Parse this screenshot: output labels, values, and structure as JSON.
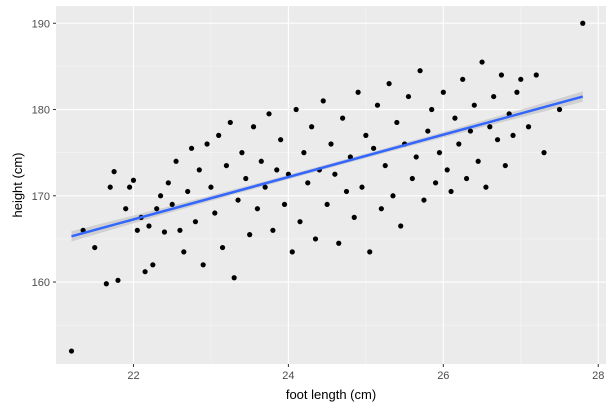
{
  "chart_data": {
    "type": "scatter",
    "title": "",
    "xlabel": "foot length (cm)",
    "ylabel": "height (cm)",
    "xlim": [
      21.0,
      28.1
    ],
    "ylim": [
      150.5,
      192.0
    ],
    "x_ticks": [
      22,
      24,
      26,
      28
    ],
    "x_tick_labels": [
      "22",
      "24",
      "26",
      "28"
    ],
    "y_ticks": [
      160,
      170,
      180,
      190
    ],
    "y_tick_labels": [
      "160",
      "170",
      "180",
      "190"
    ],
    "grid": true,
    "legend": "none",
    "colors": {
      "panel_background": "#ebebeb",
      "grid_major": "#ffffff",
      "grid_minor": "#f5f5f5",
      "point": "#000000",
      "fit_line": "#3366ff",
      "confidence_band": "#c9c9c9"
    },
    "series": [
      {
        "label_points_note": "",
        "x": [
          21.2,
          21.35,
          21.5,
          21.65,
          21.7,
          21.75,
          21.8,
          21.9,
          21.95,
          22.0,
          22.05,
          22.1,
          22.15,
          22.2,
          22.25,
          22.3,
          22.35,
          22.4,
          22.45,
          22.5,
          22.55,
          22.6,
          22.65,
          22.7,
          22.75,
          22.8,
          22.85,
          22.9,
          22.95,
          23.0,
          23.05,
          23.1,
          23.15,
          23.2,
          23.25,
          23.3,
          23.35,
          23.4,
          23.45,
          23.5,
          23.55,
          23.6,
          23.65,
          23.7,
          23.75,
          23.8,
          23.85,
          23.9,
          23.95,
          24.0,
          24.05,
          24.1,
          24.15,
          24.2,
          24.25,
          24.3,
          24.35,
          24.4,
          24.45,
          24.5,
          24.55,
          24.6,
          24.65,
          24.7,
          24.75,
          24.8,
          24.85,
          24.9,
          24.95,
          25.0,
          25.05,
          25.1,
          25.15,
          25.2,
          25.25,
          25.3,
          25.35,
          25.4,
          25.45,
          25.5,
          25.55,
          25.6,
          25.65,
          25.7,
          25.75,
          25.8,
          25.85,
          25.9,
          25.95,
          26.0,
          26.05,
          26.1,
          26.15,
          26.2,
          26.25,
          26.3,
          26.35,
          26.4,
          26.45,
          26.5,
          26.55,
          26.6,
          26.65,
          26.7,
          26.75,
          26.8,
          26.85,
          26.9,
          26.95,
          27.0,
          27.1,
          27.2,
          27.3,
          27.5,
          27.8
        ],
        "y": [
          152.0,
          166.0,
          164.0,
          159.8,
          171.0,
          172.8,
          160.2,
          168.5,
          171.0,
          171.8,
          166.0,
          167.5,
          161.2,
          166.5,
          162.0,
          168.5,
          170.0,
          165.8,
          171.5,
          169.0,
          174.0,
          166.0,
          163.5,
          170.5,
          175.5,
          167.0,
          173.0,
          162.0,
          176.0,
          171.0,
          168.0,
          177.0,
          164.0,
          173.5,
          178.5,
          160.5,
          169.5,
          175.0,
          172.0,
          165.5,
          178.0,
          168.5,
          174.0,
          171.0,
          179.5,
          166.0,
          173.0,
          176.5,
          169.0,
          172.5,
          163.5,
          180.0,
          167.0,
          175.0,
          171.5,
          178.0,
          165.0,
          173.0,
          181.0,
          169.0,
          176.0,
          172.5,
          164.5,
          179.0,
          170.5,
          174.5,
          167.5,
          182.0,
          171.0,
          177.0,
          163.5,
          175.5,
          180.5,
          168.5,
          173.5,
          183.0,
          170.0,
          178.5,
          166.5,
          176.0,
          181.5,
          172.0,
          174.5,
          184.5,
          169.5,
          177.5,
          180.0,
          171.5,
          175.0,
          182.0,
          173.0,
          170.5,
          179.0,
          176.0,
          183.5,
          172.0,
          177.5,
          180.5,
          174.0,
          185.5,
          171.0,
          178.0,
          181.5,
          176.5,
          184.0,
          173.5,
          179.5,
          177.0,
          182.0,
          183.5,
          178.0,
          184.0,
          175.0,
          180.0,
          190.0
        ],
        "values_note": ""
      }
    ],
    "fit_line": {
      "method": "linear",
      "x": [
        21.2,
        27.8
      ],
      "y": [
        165.3,
        181.5
      ]
    }
  }
}
